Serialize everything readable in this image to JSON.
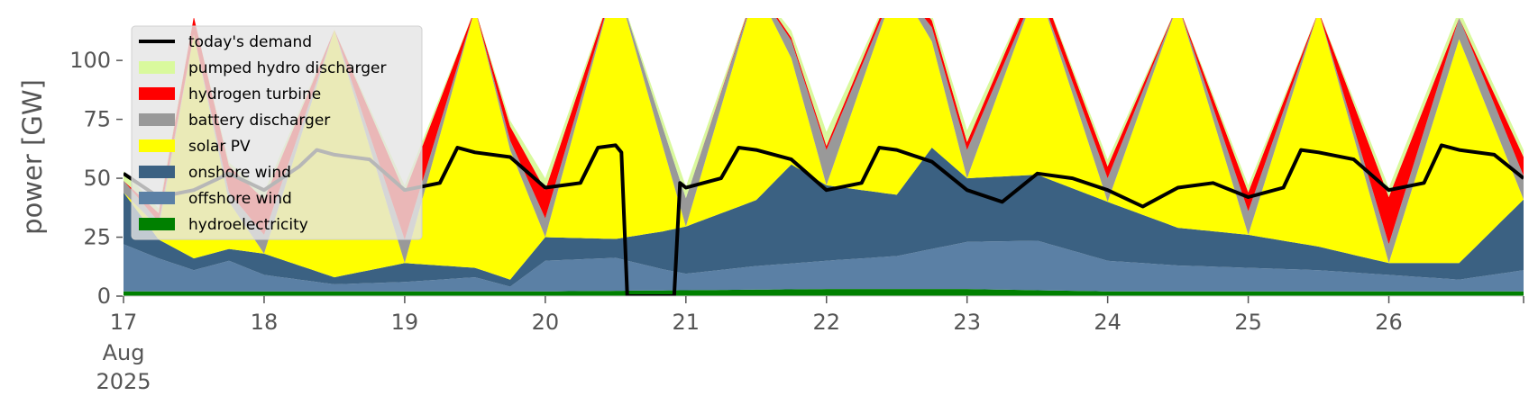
{
  "chart_data": {
    "type": "area",
    "title": "",
    "xlabel": "",
    "ylabel": "power [GW]",
    "ylim": [
      0,
      118
    ],
    "xlim": [
      "2025-08-17T00:00",
      "2025-08-26T23:00"
    ],
    "yticks": [
      0,
      25,
      50,
      75,
      100
    ],
    "xticks": [
      {
        "date": "2025-08-17",
        "label": "17"
      },
      {
        "date": "2025-08-18",
        "label": "18"
      },
      {
        "date": "2025-08-19",
        "label": "19"
      },
      {
        "date": "2025-08-20",
        "label": "20"
      },
      {
        "date": "2025-08-21",
        "label": "21"
      },
      {
        "date": "2025-08-22",
        "label": "22"
      },
      {
        "date": "2025-08-23",
        "label": "23"
      },
      {
        "date": "2025-08-24",
        "label": "24"
      },
      {
        "date": "2025-08-25",
        "label": "25"
      },
      {
        "date": "2025-08-26",
        "label": "26"
      }
    ],
    "xtick_first_sublabels": [
      "Aug",
      "2025"
    ],
    "grid": false,
    "legend_position": "top-left",
    "background": "#ffffff",
    "legend_background": "#e5e5e5",
    "stack_order": [
      "hydroelectricity",
      "offshore wind",
      "onshore wind",
      "solar PV",
      "battery discharger",
      "hydrogen turbine",
      "pumped hydro discharger"
    ],
    "series": [
      {
        "name": "hydroelectricity",
        "color": "#008000",
        "points": [
          [
            "2025-08-17",
            2
          ],
          [
            "2025-08-19",
            2
          ],
          [
            "2025-08-20",
            2
          ],
          [
            "2025-08-22",
            3
          ],
          [
            "2025-08-23",
            3
          ],
          [
            "2025-08-24",
            2
          ],
          [
            "2025-08-26",
            2
          ],
          [
            "2025-08-26T23:00",
            2
          ]
        ]
      },
      {
        "name": "offshore wind",
        "color": "#5b80a5",
        "points": [
          [
            "2025-08-17",
            20
          ],
          [
            "2025-08-17T06:00",
            14
          ],
          [
            "2025-08-17T12:00",
            9
          ],
          [
            "2025-08-17T18:00",
            13
          ],
          [
            "2025-08-18",
            7
          ],
          [
            "2025-08-18T12:00",
            3
          ],
          [
            "2025-08-19",
            4
          ],
          [
            "2025-08-19T12:00",
            6
          ],
          [
            "2025-08-19T18:00",
            2
          ],
          [
            "2025-08-20",
            13
          ],
          [
            "2025-08-20T12:00",
            14
          ],
          [
            "2025-08-20T20:00",
            9
          ],
          [
            "2025-08-21",
            7
          ],
          [
            "2025-08-21T12:00",
            10
          ],
          [
            "2025-08-22",
            12
          ],
          [
            "2025-08-22T12:00",
            14
          ],
          [
            "2025-08-23",
            20
          ],
          [
            "2025-08-23T12:00",
            21
          ],
          [
            "2025-08-24",
            13
          ],
          [
            "2025-08-24T12:00",
            11
          ],
          [
            "2025-08-25",
            10
          ],
          [
            "2025-08-25T12:00",
            9
          ],
          [
            "2025-08-26",
            7
          ],
          [
            "2025-08-26T12:00",
            5
          ],
          [
            "2025-08-26T23:00",
            9
          ]
        ]
      },
      {
        "name": "onshore wind",
        "color": "#3b6182",
        "points": [
          [
            "2025-08-17",
            22
          ],
          [
            "2025-08-17T06:00",
            8
          ],
          [
            "2025-08-17T12:00",
            5
          ],
          [
            "2025-08-17T18:00",
            5
          ],
          [
            "2025-08-18",
            9
          ],
          [
            "2025-08-18T12:00",
            3
          ],
          [
            "2025-08-19",
            8
          ],
          [
            "2025-08-19T12:00",
            4
          ],
          [
            "2025-08-19T18:00",
            3
          ],
          [
            "2025-08-20",
            10
          ],
          [
            "2025-08-20T12:00",
            8
          ],
          [
            "2025-08-20T20:00",
            16
          ],
          [
            "2025-08-21",
            20
          ],
          [
            "2025-08-21T12:00",
            28
          ],
          [
            "2025-08-21T18:00",
            42
          ],
          [
            "2025-08-22",
            32
          ],
          [
            "2025-08-22T12:00",
            26
          ],
          [
            "2025-08-22T18:00",
            43
          ],
          [
            "2025-08-23",
            27
          ],
          [
            "2025-08-23T12:00",
            28
          ],
          [
            "2025-08-24",
            25
          ],
          [
            "2025-08-24T12:00",
            16
          ],
          [
            "2025-08-25",
            14
          ],
          [
            "2025-08-25T12:00",
            10
          ],
          [
            "2025-08-26",
            5
          ],
          [
            "2025-08-26T12:00",
            7
          ],
          [
            "2025-08-26T23:00",
            30
          ]
        ]
      },
      {
        "name": "solar PV",
        "color": "#ffff00",
        "points": [
          [
            "2025-08-17",
            0
          ],
          [
            "2025-08-17T06:00",
            5
          ],
          [
            "2025-08-17T12:00",
            95
          ],
          [
            "2025-08-17T18:00",
            20
          ],
          [
            "2025-08-18",
            0
          ],
          [
            "2025-08-18T12:00",
            105
          ],
          [
            "2025-08-19",
            0
          ],
          [
            "2025-08-19T12:00",
            110
          ],
          [
            "2025-08-20",
            0
          ],
          [
            "2025-08-20T12:00",
            110
          ],
          [
            "2025-08-21",
            0
          ],
          [
            "2025-08-21T12:00",
            90
          ],
          [
            "2025-08-22",
            0
          ],
          [
            "2025-08-22T12:00",
            90
          ],
          [
            "2025-08-23",
            0
          ],
          [
            "2025-08-23T12:00",
            80
          ],
          [
            "2025-08-24",
            0
          ],
          [
            "2025-08-24T12:00",
            95
          ],
          [
            "2025-08-25",
            0
          ],
          [
            "2025-08-25T12:00",
            100
          ],
          [
            "2025-08-26",
            0
          ],
          [
            "2025-08-26T12:00",
            95
          ],
          [
            "2025-08-26T23:00",
            0
          ]
        ]
      },
      {
        "name": "battery discharger",
        "color": "#999999",
        "points": [
          [
            "2025-08-17",
            5
          ],
          [
            "2025-08-17T12:00",
            0
          ],
          [
            "2025-08-18",
            8
          ],
          [
            "2025-08-18T12:00",
            0
          ],
          [
            "2025-08-19",
            10
          ],
          [
            "2025-08-19T12:00",
            0
          ],
          [
            "2025-08-20",
            8
          ],
          [
            "2025-08-20T12:00",
            0
          ],
          [
            "2025-08-21",
            12
          ],
          [
            "2025-08-21T12:00",
            0
          ],
          [
            "2025-08-22",
            15
          ],
          [
            "2025-08-22T12:00",
            0
          ],
          [
            "2025-08-23",
            12
          ],
          [
            "2025-08-23T12:00",
            0
          ],
          [
            "2025-08-24",
            10
          ],
          [
            "2025-08-24T12:00",
            0
          ],
          [
            "2025-08-25",
            10
          ],
          [
            "2025-08-25T12:00",
            0
          ],
          [
            "2025-08-26",
            8
          ],
          [
            "2025-08-26T23:00",
            10
          ]
        ]
      },
      {
        "name": "hydrogen turbine",
        "color": "#ff0000",
        "points": [
          [
            "2025-08-17",
            0
          ],
          [
            "2025-08-18",
            15
          ],
          [
            "2025-08-18T12:00",
            0
          ],
          [
            "2025-08-19",
            20
          ],
          [
            "2025-08-19T12:00",
            0
          ],
          [
            "2025-08-20",
            12
          ],
          [
            "2025-08-20T12:00",
            0
          ],
          [
            "2025-08-21",
            0
          ],
          [
            "2025-08-24",
            5
          ],
          [
            "2025-08-24T12:00",
            0
          ],
          [
            "2025-08-25",
            8
          ],
          [
            "2025-08-25T12:00",
            0
          ],
          [
            "2025-08-26",
            20
          ],
          [
            "2025-08-26T12:00",
            0
          ],
          [
            "2025-08-26T23:00",
            8
          ]
        ]
      },
      {
        "name": "pumped hydro discharger",
        "color": "#d9f99d",
        "points": [
          [
            "2025-08-17",
            4
          ],
          [
            "2025-08-17T12:00",
            0
          ],
          [
            "2025-08-18",
            3
          ],
          [
            "2025-08-18T12:00",
            0
          ],
          [
            "2025-08-19",
            3
          ],
          [
            "2025-08-19T12:00",
            0
          ],
          [
            "2025-08-20",
            5
          ],
          [
            "2025-08-20T12:00",
            0
          ],
          [
            "2025-08-21",
            5
          ],
          [
            "2025-08-21T12:00",
            0
          ],
          [
            "2025-08-22",
            6
          ],
          [
            "2025-08-22T12:00",
            0
          ],
          [
            "2025-08-23",
            5
          ],
          [
            "2025-08-23T12:00",
            0
          ],
          [
            "2025-08-24",
            3
          ],
          [
            "2025-08-24T12:00",
            0
          ],
          [
            "2025-08-25",
            3
          ],
          [
            "2025-08-25T12:00",
            0
          ],
          [
            "2025-08-26",
            4
          ],
          [
            "2025-08-26T23:00",
            3
          ]
        ]
      },
      {
        "name": "today's demand",
        "type": "line",
        "color": "#000000",
        "points": [
          [
            "2025-08-17",
            52
          ],
          [
            "2025-08-17T06:00",
            42
          ],
          [
            "2025-08-17T12:00",
            45
          ],
          [
            "2025-08-17T18:00",
            52
          ],
          [
            "2025-08-18",
            45
          ],
          [
            "2025-08-18T06:00",
            55
          ],
          [
            "2025-08-18T09:00",
            62
          ],
          [
            "2025-08-18T12:00",
            60
          ],
          [
            "2025-08-18T18:00",
            58
          ],
          [
            "2025-08-19",
            45
          ],
          [
            "2025-08-19T06:00",
            48
          ],
          [
            "2025-08-19T09:00",
            63
          ],
          [
            "2025-08-19T12:00",
            61
          ],
          [
            "2025-08-19T18:00",
            59
          ],
          [
            "2025-08-20",
            46
          ],
          [
            "2025-08-20T06:00",
            48
          ],
          [
            "2025-08-20T09:00",
            63
          ],
          [
            "2025-08-20T12:00",
            64
          ],
          [
            "2025-08-20T13:00",
            61
          ],
          [
            "2025-08-20T14:00",
            0
          ],
          [
            "2025-08-20T22:00",
            0
          ],
          [
            "2025-08-20T23:00",
            48
          ],
          [
            "2025-08-21",
            46
          ],
          [
            "2025-08-21T06:00",
            50
          ],
          [
            "2025-08-21T09:00",
            63
          ],
          [
            "2025-08-21T12:00",
            62
          ],
          [
            "2025-08-21T18:00",
            58
          ],
          [
            "2025-08-22",
            45
          ],
          [
            "2025-08-22T06:00",
            48
          ],
          [
            "2025-08-22T09:00",
            63
          ],
          [
            "2025-08-22T12:00",
            62
          ],
          [
            "2025-08-22T18:00",
            57
          ],
          [
            "2025-08-23",
            45
          ],
          [
            "2025-08-23T06:00",
            40
          ],
          [
            "2025-08-23T12:00",
            52
          ],
          [
            "2025-08-23T18:00",
            50
          ],
          [
            "2025-08-24",
            45
          ],
          [
            "2025-08-24T06:00",
            38
          ],
          [
            "2025-08-24T12:00",
            46
          ],
          [
            "2025-08-24T18:00",
            48
          ],
          [
            "2025-08-25",
            42
          ],
          [
            "2025-08-25T06:00",
            46
          ],
          [
            "2025-08-25T09:00",
            62
          ],
          [
            "2025-08-25T12:00",
            61
          ],
          [
            "2025-08-25T18:00",
            58
          ],
          [
            "2025-08-26",
            45
          ],
          [
            "2025-08-26T06:00",
            48
          ],
          [
            "2025-08-26T09:00",
            64
          ],
          [
            "2025-08-26T12:00",
            62
          ],
          [
            "2025-08-26T18:00",
            60
          ],
          [
            "2025-08-26T23:00",
            50
          ]
        ]
      }
    ],
    "legend": [
      {
        "label": "today's demand",
        "kind": "line",
        "color": "#000000"
      },
      {
        "label": "pumped hydro discharger",
        "kind": "patch",
        "color": "#d9f99d"
      },
      {
        "label": "hydrogen turbine",
        "kind": "patch",
        "color": "#ff0000"
      },
      {
        "label": "battery discharger",
        "kind": "patch",
        "color": "#999999"
      },
      {
        "label": "solar PV",
        "kind": "patch",
        "color": "#ffff00"
      },
      {
        "label": "onshore wind",
        "kind": "patch",
        "color": "#3b6182"
      },
      {
        "label": "offshore wind",
        "kind": "patch",
        "color": "#5b80a5"
      },
      {
        "label": "hydroelectricity",
        "kind": "patch",
        "color": "#008000"
      }
    ]
  }
}
